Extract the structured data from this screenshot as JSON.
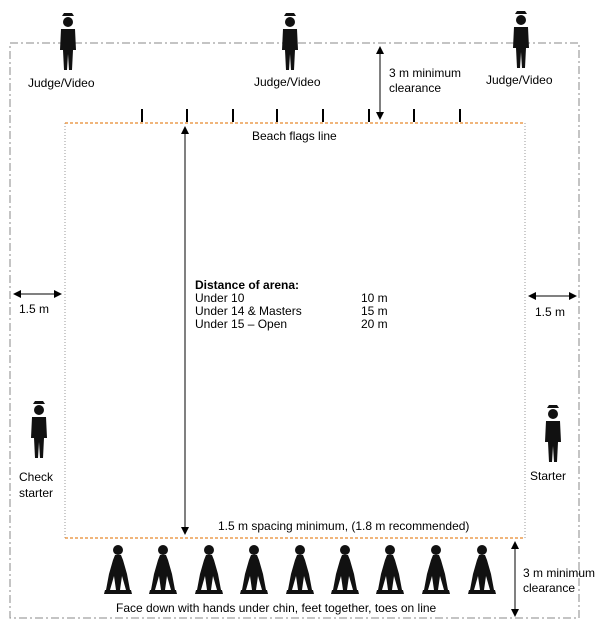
{
  "people": {
    "judge_label": "Judge/Video",
    "check_starter_line1": "Check",
    "check_starter_line2": "starter",
    "starter_label": "Starter"
  },
  "annotations": {
    "top_clearance_line1": "3 m minimum",
    "top_clearance_line2": "clearance",
    "flags_line": "Beach flags line",
    "left_side": "1.5 m",
    "right_side": "1.5 m",
    "spacing": "1.5 m spacing minimum, (1.8 m recommended)",
    "bottom_clearance_line1": "3 m minimum",
    "bottom_clearance_line2": "clearance",
    "competitor_position": "Face down with hands under chin, feet together, toes on line"
  },
  "arena": {
    "title": "Distance of arena:",
    "rows": [
      {
        "category": "Under 10",
        "distance": "10 m"
      },
      {
        "category": "Under 14 & Masters",
        "distance": "15 m"
      },
      {
        "category": "Under 15 – Open",
        "distance": "20 m"
      }
    ]
  },
  "colors": {
    "line_color": "#e8892c",
    "outer_boundary": "#888888",
    "figure": "#111111"
  },
  "counts": {
    "flags": 8,
    "competitors": 9
  }
}
